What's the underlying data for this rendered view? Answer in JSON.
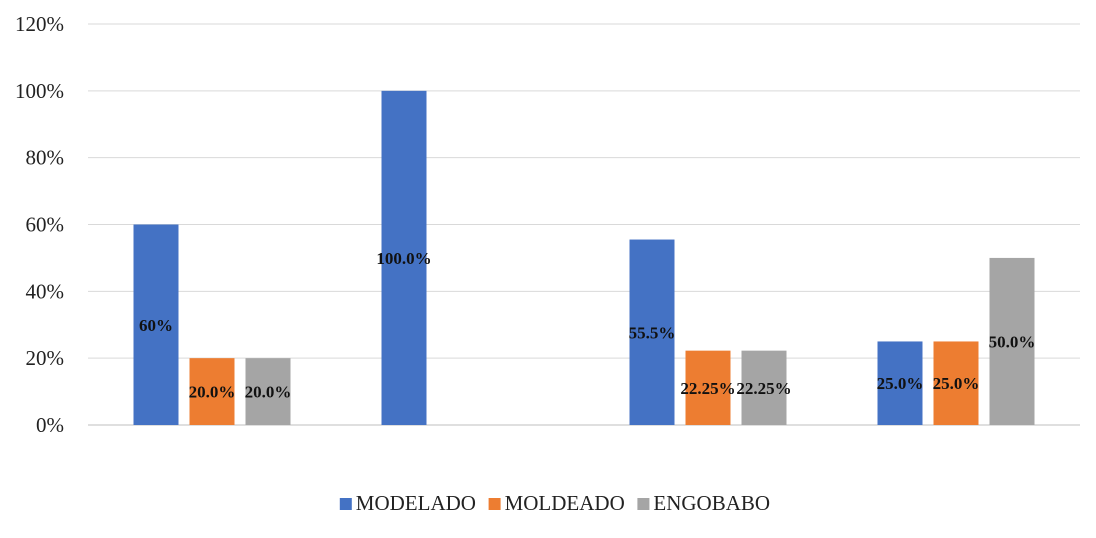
{
  "chart_data": {
    "type": "bar",
    "title": "",
    "xlabel": "",
    "ylabel": "",
    "categories": [
      "",
      "",
      "",
      ""
    ],
    "ylim": [
      0,
      1.2
    ],
    "yticks": [
      0,
      0.2,
      0.4,
      0.6,
      0.8,
      1.0,
      1.2
    ],
    "ytick_labels": [
      "0%",
      "20%",
      "40%",
      "60%",
      "80%",
      "100%",
      "120%"
    ],
    "grid": true,
    "legend_position": "bottom",
    "series": [
      {
        "name": "MODELADO",
        "color": "#4472C4",
        "values": [
          0.6,
          1.0,
          0.555,
          0.25
        ],
        "labels": [
          "60%",
          "100.0%",
          "55.5%",
          "25.0%"
        ]
      },
      {
        "name": "MOLDEADO",
        "color": "#ED7D31",
        "values": [
          0.2,
          0,
          0.2225,
          0.25
        ],
        "labels": [
          "20.0%",
          "",
          "22.25%",
          "25.0%"
        ]
      },
      {
        "name": "ENGOBABO",
        "color": "#A5A5A5",
        "values": [
          0.2,
          0,
          0.2225,
          0.5
        ],
        "labels": [
          "20.0%",
          "",
          "22.25%",
          "50.0%"
        ]
      }
    ]
  }
}
